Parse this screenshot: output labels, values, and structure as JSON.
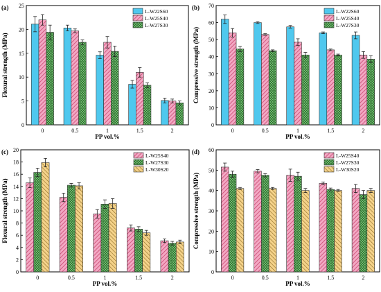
{
  "chart_data": [
    {
      "panel": "(a)",
      "type": "bar",
      "categories": [
        "0",
        "0.5",
        "1",
        "1.5",
        "2"
      ],
      "xlabel": "PP vol.%",
      "ylabel": "Flexural strength (MPa)",
      "ylim": [
        0,
        25
      ],
      "yticks": [
        0,
        5,
        10,
        15,
        20,
        25
      ],
      "grid": false,
      "legend_position": "top-right",
      "series": [
        {
          "name": "L-W22S60",
          "values": [
            21.1,
            20.3,
            14.6,
            8.5,
            5.1
          ],
          "errors": [
            1.6,
            0.6,
            0.7,
            0.8,
            0.5
          ],
          "style": "blue"
        },
        {
          "name": "L-W25S40",
          "values": [
            22.0,
            19.7,
            17.3,
            11.0,
            5.0
          ],
          "errors": [
            1.1,
            0.4,
            1.2,
            1.0,
            0.4
          ],
          "style": "pink"
        },
        {
          "name": "L-W27S30",
          "values": [
            19.4,
            17.3,
            15.4,
            8.3,
            4.6
          ],
          "errors": [
            1.5,
            0.5,
            1.1,
            0.5,
            0.4
          ],
          "style": "green"
        }
      ]
    },
    {
      "panel": "(b)",
      "type": "bar",
      "categories": [
        "0",
        "0.5",
        "1",
        "1.5",
        "2"
      ],
      "xlabel": "PP vol.%",
      "ylabel": "Compressive strength (MPa)",
      "ylim": [
        0,
        70
      ],
      "yticks": [
        0,
        10,
        20,
        30,
        40,
        50,
        60,
        70
      ],
      "grid": false,
      "legend_position": "top-right",
      "series": [
        {
          "name": "L-W22S60",
          "values": [
            62.0,
            60.0,
            57.5,
            54.0,
            52.5
          ],
          "errors": [
            2.5,
            0.5,
            0.8,
            0.5,
            2.0
          ],
          "style": "blue"
        },
        {
          "name": "L-W25S40",
          "values": [
            54.0,
            53.0,
            48.5,
            44.0,
            41.0
          ],
          "errors": [
            2.5,
            0.5,
            2.0,
            0.5,
            2.0
          ],
          "style": "pink"
        },
        {
          "name": "L-W27S30",
          "values": [
            44.5,
            43.5,
            41.0,
            41.0,
            38.5
          ],
          "errors": [
            1.5,
            0.5,
            1.5,
            0.5,
            2.0
          ],
          "style": "green"
        }
      ]
    },
    {
      "panel": "(c)",
      "type": "bar",
      "categories": [
        "0",
        "0.5",
        "1",
        "1.5",
        "2"
      ],
      "xlabel": "PP vol.%",
      "ylabel": "Flexural strength (MPa)",
      "ylim": [
        0,
        20
      ],
      "yticks": [
        0,
        2,
        4,
        6,
        8,
        10,
        12,
        14,
        16,
        18,
        20
      ],
      "grid": false,
      "legend_position": "top-right",
      "series": [
        {
          "name": "L-W25S40",
          "values": [
            14.6,
            12.2,
            9.5,
            7.2,
            5.1
          ],
          "errors": [
            0.8,
            0.7,
            0.7,
            0.5,
            0.3
          ],
          "style": "pink"
        },
        {
          "name": "L-W27S30",
          "values": [
            16.3,
            14.2,
            11.1,
            7.0,
            4.7
          ],
          "errors": [
            0.7,
            0.3,
            0.7,
            0.4,
            0.3
          ],
          "style": "green"
        },
        {
          "name": "L-W30S20",
          "values": [
            17.9,
            14.1,
            11.2,
            6.4,
            4.9
          ],
          "errors": [
            0.7,
            0.5,
            0.8,
            0.4,
            0.3
          ],
          "style": "yellow"
        }
      ]
    },
    {
      "panel": "(d)",
      "type": "bar",
      "categories": [
        "0",
        "0.5",
        "1",
        "1.5",
        "2"
      ],
      "xlabel": "PP vol.%",
      "ylabel": "Compressive strength (MPa)",
      "ylim": [
        0,
        60
      ],
      "yticks": [
        0,
        10,
        20,
        30,
        40,
        50,
        60
      ],
      "grid": false,
      "legend_position": "top-right",
      "series": [
        {
          "name": "L-W25S40",
          "values": [
            51.5,
            49.5,
            47.5,
            43.5,
            41.0
          ],
          "errors": [
            2.0,
            0.8,
            3.0,
            0.7,
            2.0
          ],
          "style": "pink"
        },
        {
          "name": "L-W27S30",
          "values": [
            48.0,
            47.5,
            47.0,
            40.5,
            38.0
          ],
          "errors": [
            1.5,
            0.8,
            2.0,
            0.7,
            2.0
          ],
          "style": "green"
        },
        {
          "name": "L-W30S20",
          "values": [
            41.0,
            41.0,
            40.0,
            40.0,
            40.0
          ],
          "errors": [
            0.5,
            0.5,
            1.0,
            0.5,
            1.0
          ],
          "style": "yellow"
        }
      ]
    }
  ],
  "styles": {
    "blue": {
      "fill": "#4fc8ee",
      "hatch": "none"
    },
    "pink": {
      "fill": "#f3a8c4",
      "hatch": "diagonal",
      "hatch_color": "#c8476e"
    },
    "green": {
      "fill": "#7ec97e",
      "hatch": "cross",
      "hatch_color": "#1f5d1f"
    },
    "yellow": {
      "fill": "#f4d28a",
      "hatch": "back-diagonal",
      "hatch_color": "#8c6a22"
    }
  }
}
